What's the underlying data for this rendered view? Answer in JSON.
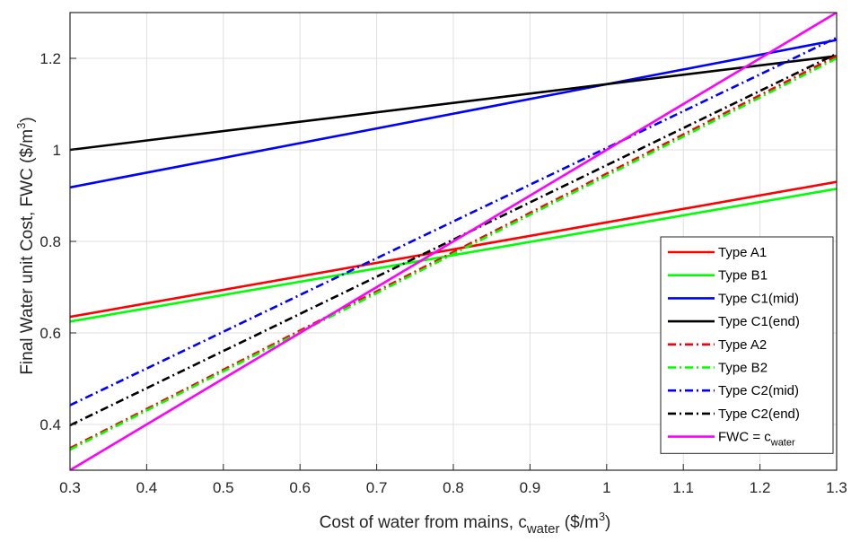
{
  "chart_data": {
    "type": "line",
    "title": "",
    "xlabel": {
      "main": "Cost of water from mains, c",
      "sub": "water",
      "unit_pre": " ($/m",
      "unit_sup": "3",
      "unit_post": ")"
    },
    "ylabel": {
      "main": "Final Water unit Cost, FWC ($/m",
      "sup": "3",
      "post": ")"
    },
    "xlim": [
      0.3,
      1.3
    ],
    "ylim": [
      0.3,
      1.3
    ],
    "xticks": [
      "0.3",
      "0.4",
      "0.5",
      "0.6",
      "0.7",
      "0.8",
      "0.9",
      "1",
      "1.1",
      "1.2",
      "1.3"
    ],
    "yticks": [
      "0.4",
      "0.6",
      "0.8",
      "1",
      "1.2"
    ],
    "ytick_values": [
      0.4,
      0.6,
      0.8,
      1.0,
      1.2
    ],
    "grid": true,
    "legend_position": "bottom-right",
    "series": [
      {
        "name": "Type A1",
        "x": [
          0.3,
          1.3
        ],
        "y": [
          0.635,
          0.93
        ],
        "color": "#ff0000",
        "dash": "solid"
      },
      {
        "name": "Type B1",
        "x": [
          0.3,
          1.3
        ],
        "y": [
          0.625,
          0.915
        ],
        "color": "#00ff00",
        "dash": "solid"
      },
      {
        "name": "Type C1(mid)",
        "x": [
          0.3,
          1.3
        ],
        "y": [
          0.918,
          1.24
        ],
        "color": "#0000ff",
        "dash": "solid"
      },
      {
        "name": "Type C1(end)",
        "x": [
          0.3,
          1.3
        ],
        "y": [
          1.0,
          1.205
        ],
        "color": "#000000",
        "dash": "solid"
      },
      {
        "name": "Type A2",
        "x": [
          0.3,
          1.3
        ],
        "y": [
          0.348,
          1.205
        ],
        "color": "#ff0000",
        "dash": "dashdot"
      },
      {
        "name": "Type B2",
        "x": [
          0.3,
          1.3
        ],
        "y": [
          0.345,
          1.2
        ],
        "color": "#00ff00",
        "dash": "dashdot"
      },
      {
        "name": "Type C2(mid)",
        "x": [
          0.3,
          1.3
        ],
        "y": [
          0.442,
          1.245
        ],
        "color": "#0000ff",
        "dash": "dashdot"
      },
      {
        "name": "Type C2(end)",
        "x": [
          0.3,
          1.3
        ],
        "y": [
          0.398,
          1.21
        ],
        "color": "#000000",
        "dash": "dashdot"
      },
      {
        "name": "FWC = c",
        "name_sub": "water",
        "x": [
          0.3,
          1.3
        ],
        "y": [
          0.3,
          1.3
        ],
        "color": "#ff00ff",
        "dash": "solid"
      }
    ]
  }
}
